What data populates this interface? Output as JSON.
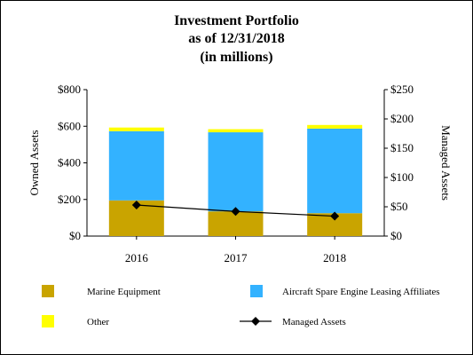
{
  "chart_data": {
    "type": "bar",
    "title_lines": [
      "Investment Portfolio",
      "as of 12/31/2018",
      "(in millions)"
    ],
    "categories": [
      "2016",
      "2017",
      "2018"
    ],
    "series": [
      {
        "name": "Marine Equipment",
        "color": "#c9a400",
        "axis": "left",
        "values": [
          195,
          135,
          125
        ]
      },
      {
        "name": "Aircraft Spare Engine Leasing Affiliates",
        "color": "#33b2ff",
        "axis": "left",
        "values": [
          378,
          432,
          462
        ]
      },
      {
        "name": "Other",
        "color": "#ffff00",
        "axis": "left",
        "values": [
          20,
          17,
          20
        ]
      }
    ],
    "line_series": {
      "name": "Managed Assets",
      "color": "#000000",
      "axis": "right",
      "values": [
        53,
        42,
        34
      ]
    },
    "left_axis": {
      "label": "Owned Assets",
      "ylim": [
        0,
        800
      ],
      "ticks": [
        "$0",
        "$200",
        "$400",
        "$600",
        "$800"
      ],
      "tick_values": [
        0,
        200,
        400,
        600,
        800
      ]
    },
    "right_axis": {
      "label": "Managed Assets",
      "ylim": [
        0,
        250
      ],
      "ticks": [
        "$0",
        "$50",
        "$100",
        "$150",
        "$200",
        "$250"
      ],
      "tick_values": [
        0,
        50,
        100,
        150,
        200,
        250
      ]
    },
    "stacked": true,
    "legend": [
      {
        "label": "Marine Equipment",
        "kind": "swatch",
        "color": "#c9a400"
      },
      {
        "label": "Aircraft Spare Engine Leasing Affiliates",
        "kind": "swatch",
        "color": "#33b2ff"
      },
      {
        "label": "Other",
        "kind": "swatch",
        "color": "#ffff00"
      },
      {
        "label": "Managed Assets",
        "kind": "line-marker",
        "color": "#000000"
      }
    ],
    "legend_placement": "bottom",
    "grid": false
  }
}
